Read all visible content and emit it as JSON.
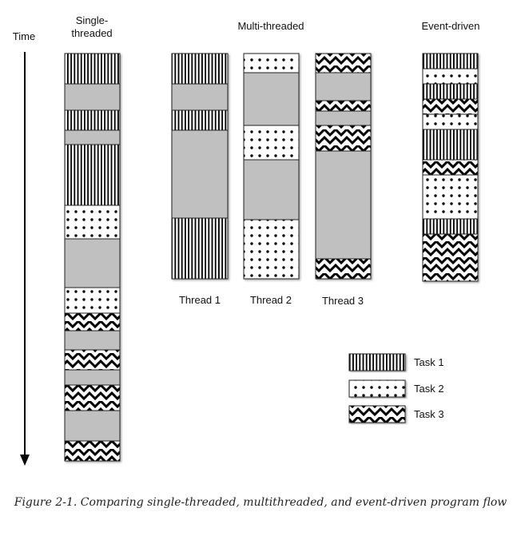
{
  "headers": {
    "time": "Time",
    "single_line1": "Single-",
    "single_line2": "threaded",
    "multi": "Multi-threaded",
    "event": "Event-driven"
  },
  "thread_labels": [
    "Thread 1",
    "Thread 2",
    "Thread 3"
  ],
  "legend": [
    {
      "label": "Task 1",
      "pattern": "stripes"
    },
    {
      "label": "Task 2",
      "pattern": "dots"
    },
    {
      "label": "Task 3",
      "pattern": "zigzag"
    }
  ],
  "caption": "Figure 2-1. Comparing single-threaded, multithreaded, and event-driven program flow",
  "colors": {
    "wait": "#c0c0c0",
    "ink": "#000000",
    "background": "#ffffff"
  }
}
